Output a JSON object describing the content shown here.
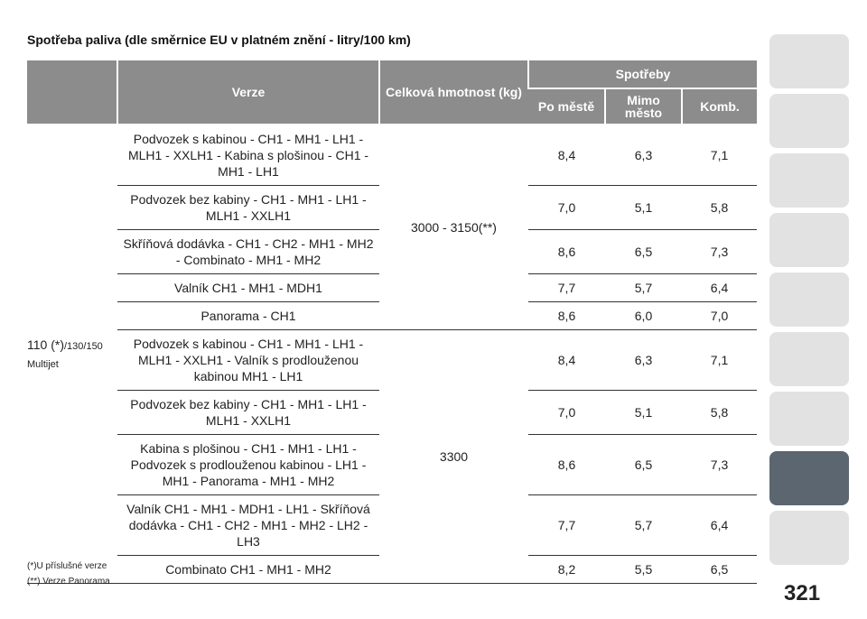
{
  "title": "Spotřeba paliva (dle směrnice EU v platném znění - litry/100 km)",
  "table": {
    "headers": {
      "version": "Verze",
      "mass": "Celková hmotnost (kg)",
      "consumption": "Spotřeby",
      "city": "Po městě",
      "extra": "Mimo město",
      "comb": "Komb."
    },
    "engine": {
      "main": "110 (*)",
      "sub": "/130/150 Multijet"
    },
    "groups": [
      {
        "mass": "3000 - 3150(**)",
        "rows": [
          {
            "version": "Podvozek s kabinou - CH1 - MH1 - LH1 - MLH1 - XXLH1 - Kabina s plošinou - CH1 - MH1 - LH1",
            "city": "8,4",
            "extra": "6,3",
            "comb": "7,1"
          },
          {
            "version": "Podvozek bez kabiny - CH1 - MH1 - LH1 - MLH1 - XXLH1",
            "city": "7,0",
            "extra": "5,1",
            "comb": "5,8"
          },
          {
            "version": "Skříňová dodávka - CH1 - CH2 - MH1 - MH2 - Combinato - MH1 - MH2",
            "city": "8,6",
            "extra": "6,5",
            "comb": "7,3"
          },
          {
            "version": "Valník CH1 - MH1 - MDH1",
            "city": "7,7",
            "extra": "5,7",
            "comb": "6,4"
          },
          {
            "version": "Panorama - CH1",
            "city": "8,6",
            "extra": "6,0",
            "comb": "7,0"
          }
        ]
      },
      {
        "mass": "3300",
        "rows": [
          {
            "version": "Podvozek s kabinou - CH1 - MH1 - LH1 - MLH1 - XXLH1 - Valník s prodlouženou kabinou MH1 - LH1",
            "city": "8,4",
            "extra": "6,3",
            "comb": "7,1"
          },
          {
            "version": "Podvozek bez kabiny - CH1 - MH1 - LH1 - MLH1 - XXLH1",
            "city": "7,0",
            "extra": "5,1",
            "comb": "5,8"
          },
          {
            "version": "Kabina s plošinou - CH1 - MH1 - LH1 - Podvozek s prodlouženou kabinou - LH1 - MH1 - Panorama - MH1 - MH2",
            "city": "8,6",
            "extra": "6,5",
            "comb": "7,3"
          },
          {
            "version": "Valník CH1 - MH1 - MDH1 - LH1 - Skříňová dodávka - CH1 - CH2 - MH1 - MH2 - LH2 - LH3",
            "city": "7,7",
            "extra": "5,7",
            "comb": "6,4"
          },
          {
            "version": "Combinato CH1 - MH1 - MH2",
            "city": "8,2",
            "extra": "5,5",
            "comb": "6,5"
          }
        ]
      }
    ]
  },
  "footnotes": [
    "(*)U příslušné verze",
    "(**) Verze Panorama"
  ],
  "page_number": "321"
}
